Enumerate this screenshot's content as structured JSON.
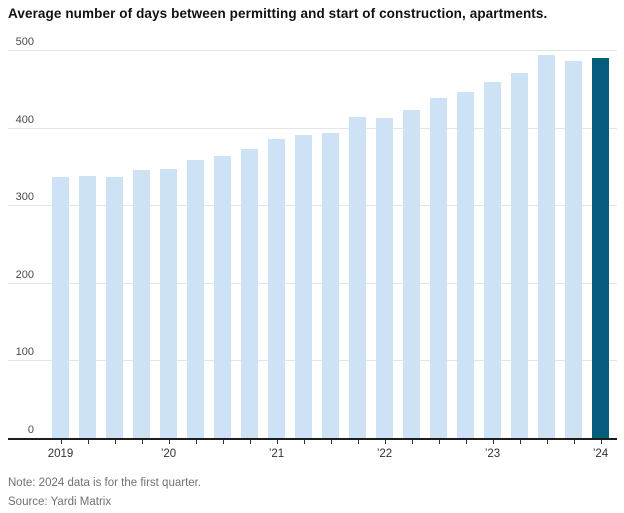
{
  "title": "Average number of days between permitting and start of construction, apartments.",
  "note": "Note: 2024 data is for the first quarter.",
  "source": "Source: Yardi Matrix",
  "colors": {
    "bar_light": "#cde2f4",
    "bar_highlight": "#065c7c",
    "gridline": "#e4e4e4",
    "axis": "#1d1d1d",
    "title_text": "#111111",
    "axis_label_text": "#4b4b4b",
    "note_text": "#717171"
  },
  "chart_data": {
    "type": "bar",
    "categories": [
      "2019 Q1",
      "2019 Q2",
      "2019 Q3",
      "2019 Q4",
      "2020 Q1",
      "2020 Q2",
      "2020 Q3",
      "2020 Q4",
      "2021 Q1",
      "2021 Q2",
      "2021 Q3",
      "2021 Q4",
      "2022 Q1",
      "2022 Q2",
      "2022 Q3",
      "2022 Q4",
      "2023 Q1",
      "2023 Q2",
      "2023 Q3",
      "2023 Q4",
      "2024 Q1"
    ],
    "values": [
      336,
      338,
      336,
      345,
      347,
      358,
      363,
      372,
      385,
      390,
      393,
      414,
      412,
      423,
      438,
      446,
      459,
      471,
      493,
      486,
      490
    ],
    "highlight_index": 20,
    "title": "Average number of days between permitting and start of construction, apartments.",
    "xlabel": "",
    "ylabel": "",
    "ylim": [
      0,
      500
    ],
    "y_ticks": [
      0,
      100,
      200,
      300,
      400,
      500
    ],
    "x_tick_labels": [
      {
        "text": "2019",
        "bar_index": 0
      },
      {
        "text": "’20",
        "bar_index": 4
      },
      {
        "text": "’21",
        "bar_index": 8
      },
      {
        "text": "’22",
        "bar_index": 12
      },
      {
        "text": "’23",
        "bar_index": 16
      },
      {
        "text": "’24",
        "bar_index": 20
      }
    ],
    "grid": true,
    "legend": false
  }
}
